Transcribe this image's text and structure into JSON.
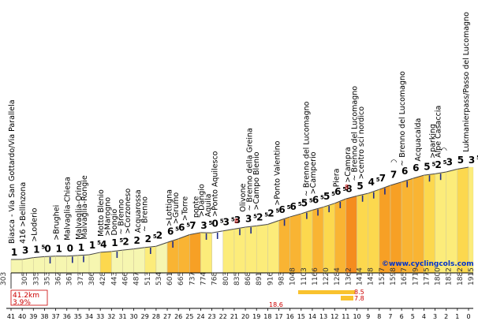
{
  "chart_data": {
    "type": "area",
    "x_unit": "km",
    "km_ticks": [
      41,
      40,
      39,
      38,
      37,
      36,
      35,
      34,
      33,
      32,
      31,
      30,
      29,
      28,
      27,
      26,
      25,
      24,
      23,
      22,
      21,
      20,
      19,
      18,
      17,
      16,
      15,
      14,
      13,
      12,
      11,
      10,
      9,
      8,
      7,
      6,
      5,
      4,
      3,
      2,
      1,
      0
    ],
    "altitudes": [
      303,
      305,
      335,
      353,
      362,
      361,
      373,
      386,
      428,
      443,
      466,
      487,
      513,
      534,
      601,
      665,
      737,
      774,
      768,
      803,
      835,
      868,
      891,
      916,
      983,
      1048,
      1103,
      1166,
      1220,
      1284,
      1362,
      1414,
      1458,
      1527,
      1598,
      1657,
      1719,
      1775,
      1800,
      1832,
      1882,
      1915
    ],
    "gradients": [
      {
        "v": "1",
        "s": ""
      },
      {
        "v": "3",
        "s": ""
      },
      {
        "v": "1",
        "s": "5"
      },
      {
        "v": "0",
        "s": ""
      },
      {
        "v": "1",
        "s": ""
      },
      {
        "v": "0",
        "s": ""
      },
      {
        "v": "1",
        "s": ""
      },
      {
        "v": "1",
        "s": "5"
      },
      {
        "v": "4",
        "s": ""
      },
      {
        "v": "1",
        "s": "5"
      },
      {
        "v": "2",
        "s": ""
      },
      {
        "v": "2",
        "s": ""
      },
      {
        "v": "2",
        "s": "5"
      },
      {
        "v": "2",
        "s": ""
      },
      {
        "v": "6",
        "s": "5"
      },
      {
        "v": "6",
        "s": "5"
      },
      {
        "v": "7",
        "s": ""
      },
      {
        "v": "3",
        "s": "5"
      },
      {
        "v": "0",
        "s": "5"
      },
      {
        "v": "3",
        "s": "5"
      },
      {
        "v": "3",
        "s": ""
      },
      {
        "v": "3",
        "s": "5"
      },
      {
        "v": "2",
        "s": "5"
      },
      {
        "v": "2",
        "s": "5"
      },
      {
        "v": "6",
        "s": "5"
      },
      {
        "v": "6",
        "s": "5"
      },
      {
        "v": "5",
        "s": "5"
      },
      {
        "v": "6",
        "s": "5"
      },
      {
        "v": "5",
        "s": "5"
      },
      {
        "v": "6",
        "s": "5"
      },
      {
        "v": "8",
        "s": ""
      },
      {
        "v": "5",
        "s": ""
      },
      {
        "v": "4",
        "s": "5"
      },
      {
        "v": "7",
        "s": ""
      },
      {
        "v": "7",
        "s": ""
      },
      {
        "v": "6",
        "s": ""
      },
      {
        "v": "6",
        "s": ""
      },
      {
        "v": "5",
        "s": "5"
      },
      {
        "v": "2",
        "s": "5"
      },
      {
        "v": "3",
        "s": ""
      },
      {
        "v": "5",
        "s": ""
      },
      {
        "v": "3",
        "s": "5"
      }
    ],
    "segment_colors": [
      "#f6f6b0",
      "#f6f6b0",
      "#f6f6b0",
      "#f6f6b0",
      "#f6f6b0",
      "#f6f6b0",
      "#f6f6b0",
      "#f6f6b0",
      "#fcd84e",
      "#f6f6b0",
      "#f6f6b0",
      "#f6f6b0",
      "#fcec7a",
      "#f6f6b0",
      "#f9b433",
      "#f9b433",
      "#f7a025",
      "#fcec7a",
      "#ffffff",
      "#fcec7a",
      "#fcec7a",
      "#fcec7a",
      "#fcec7a",
      "#fcec7a",
      "#f9b433",
      "#f9b433",
      "#fcd84e",
      "#f9b433",
      "#fcd84e",
      "#f9b433",
      "#f58c1e",
      "#fcd84e",
      "#fcd84e",
      "#f7a025",
      "#f7a025",
      "#f9b433",
      "#f9b433",
      "#fcd84e",
      "#fcec7a",
      "#fcec7a",
      "#fcd84e",
      "#fcec7a"
    ],
    "places": [
      {
        "km": 41,
        "label": "Biasca - Via San Gottardo/Via Parallela"
      },
      {
        "km": 40,
        "label": "416 >Bellinzona"
      },
      {
        "km": 39,
        "label": ">Loderio"
      },
      {
        "km": 37,
        "label": ">Brughei"
      },
      {
        "km": 36,
        "label": "Malvaglia-Chiesa"
      },
      {
        "km": 35,
        "label": "Malvaglia-Orino"
      },
      {
        "km": 34.5,
        "label": "Malvaglia-Rongie"
      },
      {
        "km": 33,
        "label": "Motto Blenio"
      },
      {
        "km": 32.4,
        "label": ">Marogno"
      },
      {
        "km": 31.8,
        "label": "Dongio"
      },
      {
        "km": 31.2,
        "label": "~ Brenno"
      },
      {
        "km": 30.6,
        "label": ">Corzoneso"
      },
      {
        "km": 29.7,
        "label": "Acquarossa"
      },
      {
        "km": 29.1,
        "label": "~ Brenno"
      },
      {
        "km": 26.9,
        "label": ">Lottigna"
      },
      {
        "km": 26.3,
        "label": ">Grumo"
      },
      {
        "km": 25.5,
        "label": ">Torre"
      },
      {
        "km": 24.5,
        "label": "ponte"
      },
      {
        "km": 24.0,
        "label": ">Dangio"
      },
      {
        "km": 23.4,
        "label": "Aquila"
      },
      {
        "km": 22.8,
        "label": ">Ponto Aquilesco"
      },
      {
        "km": 20.3,
        "label": "Olivone"
      },
      {
        "km": 19.7,
        "label": "~ Brenno della Greina"
      },
      {
        "km": 19.1,
        "label": ">Campo Blenio"
      },
      {
        "km": 17.2,
        "label": ">Ponto Valentino"
      },
      {
        "km": 14.6,
        "label": "~ Brenno del Lucomagno"
      },
      {
        "km": 14.0,
        "label": ">Camperio"
      },
      {
        "km": 11.9,
        "label": "Piera"
      },
      {
        "km": 10.9,
        "label": ">Campra"
      },
      {
        "km": 10.3,
        "label": "~ Brenno del Lucomagno"
      },
      {
        "km": 9.7,
        "label": ">centro sci nordico"
      },
      {
        "km": 6.0,
        "label": "~ Brenno del Lucomagno"
      },
      {
        "km": 4.6,
        "label": "Acquacalda"
      },
      {
        "km": 3.3,
        "label": ">parking"
      },
      {
        "km": 2.8,
        "label": "Alpe Casaccia"
      },
      {
        "km": 0.3,
        "label": "Lukmanierpass/Passo del Lucomagno"
      }
    ],
    "summits": [
      {
        "km": 6.7,
        "glyph": "◠"
      },
      {
        "km": 2.2,
        "glyph": "◠"
      }
    ],
    "info": {
      "distance": "41.2km",
      "avg_gradient": "3.9%",
      "steep_1": "8.5",
      "steep_2": "7.8",
      "steep_3": "18.6",
      "spot_max_a": "8",
      "spot_max_b": "8"
    },
    "credit": "©www.cyclingcols.com",
    "min_alt": "303",
    "max_alt": "1915"
  }
}
